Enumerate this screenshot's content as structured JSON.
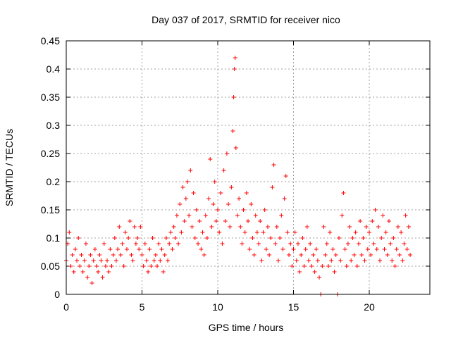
{
  "chart_data": {
    "type": "scatter",
    "title": "Day 037 of 2017, SRMTID for receiver nico",
    "xlabel": "GPS time / hours",
    "ylabel": "SRMTID / TECUs",
    "xlim": [
      0,
      24
    ],
    "ylim": [
      0,
      0.45
    ],
    "x_ticks": [
      0,
      5,
      10,
      15,
      20
    ],
    "y_ticks": [
      0,
      0.05,
      0.1,
      0.15,
      0.2,
      0.25,
      0.3,
      0.35,
      0.4,
      0.45
    ],
    "grid": true,
    "marker": "+",
    "series": [
      {
        "name": "SRMTID",
        "color": "#ff0000",
        "points": [
          [
            0.0,
            0.06
          ],
          [
            0.1,
            0.09
          ],
          [
            0.2,
            0.11
          ],
          [
            0.3,
            0.05
          ],
          [
            0.4,
            0.07
          ],
          [
            0.5,
            0.04
          ],
          [
            0.6,
            0.08
          ],
          [
            0.7,
            0.06
          ],
          [
            0.8,
            0.1
          ],
          [
            0.9,
            0.05
          ],
          [
            1.0,
            0.07
          ],
          [
            1.1,
            0.04
          ],
          [
            1.2,
            0.06
          ],
          [
            1.3,
            0.09
          ],
          [
            1.4,
            0.03
          ],
          [
            1.5,
            0.05
          ],
          [
            1.6,
            0.07
          ],
          [
            1.7,
            0.02
          ],
          [
            1.8,
            0.06
          ],
          [
            1.9,
            0.08
          ],
          [
            2.0,
            0.05
          ],
          [
            2.1,
            0.04
          ],
          [
            2.2,
            0.07
          ],
          [
            2.3,
            0.06
          ],
          [
            2.4,
            0.03
          ],
          [
            2.5,
            0.09
          ],
          [
            2.6,
            0.05
          ],
          [
            2.7,
            0.06
          ],
          [
            2.8,
            0.04
          ],
          [
            2.9,
            0.08
          ],
          [
            3.0,
            0.05
          ],
          [
            3.1,
            0.07
          ],
          [
            3.2,
            0.1
          ],
          [
            3.3,
            0.06
          ],
          [
            3.4,
            0.08
          ],
          [
            3.5,
            0.12
          ],
          [
            3.6,
            0.07
          ],
          [
            3.7,
            0.09
          ],
          [
            3.8,
            0.05
          ],
          [
            3.9,
            0.11
          ],
          [
            4.0,
            0.08
          ],
          [
            4.1,
            0.1
          ],
          [
            4.2,
            0.13
          ],
          [
            4.3,
            0.07
          ],
          [
            4.4,
            0.06
          ],
          [
            4.5,
            0.12
          ],
          [
            4.6,
            0.09
          ],
          [
            4.7,
            0.1
          ],
          [
            4.8,
            0.08
          ],
          [
            4.9,
            0.12
          ],
          [
            5.0,
            0.07
          ],
          [
            5.1,
            0.05
          ],
          [
            5.2,
            0.09
          ],
          [
            5.3,
            0.06
          ],
          [
            5.4,
            0.04
          ],
          [
            5.5,
            0.08
          ],
          [
            5.6,
            0.05
          ],
          [
            5.7,
            0.1
          ],
          [
            5.8,
            0.06
          ],
          [
            5.9,
            0.07
          ],
          [
            6.0,
            0.05
          ],
          [
            6.1,
            0.09
          ],
          [
            6.2,
            0.06
          ],
          [
            6.3,
            0.08
          ],
          [
            6.4,
            0.04
          ],
          [
            6.5,
            0.07
          ],
          [
            6.6,
            0.1
          ],
          [
            6.7,
            0.06
          ],
          [
            6.8,
            0.09
          ],
          [
            6.9,
            0.11
          ],
          [
            7.0,
            0.08
          ],
          [
            7.1,
            0.12
          ],
          [
            7.2,
            0.1
          ],
          [
            7.3,
            0.14
          ],
          [
            7.4,
            0.09
          ],
          [
            7.5,
            0.16
          ],
          [
            7.6,
            0.11
          ],
          [
            7.7,
            0.19
          ],
          [
            7.8,
            0.13
          ],
          [
            7.9,
            0.17
          ],
          [
            8.0,
            0.2
          ],
          [
            8.1,
            0.14
          ],
          [
            8.2,
            0.22
          ],
          [
            8.3,
            0.12
          ],
          [
            8.4,
            0.18
          ],
          [
            8.5,
            0.1
          ],
          [
            8.6,
            0.15
          ],
          [
            8.7,
            0.09
          ],
          [
            8.8,
            0.13
          ],
          [
            8.9,
            0.08
          ],
          [
            9.0,
            0.11
          ],
          [
            9.1,
            0.07
          ],
          [
            9.2,
            0.14
          ],
          [
            9.3,
            0.1
          ],
          [
            9.4,
            0.17
          ],
          [
            9.5,
            0.24
          ],
          [
            9.6,
            0.12
          ],
          [
            9.7,
            0.16
          ],
          [
            9.8,
            0.2
          ],
          [
            9.9,
            0.13
          ],
          [
            10.0,
            0.15
          ],
          [
            10.1,
            0.11
          ],
          [
            10.2,
            0.18
          ],
          [
            10.3,
            0.09
          ],
          [
            10.4,
            0.22
          ],
          [
            10.5,
            0.13
          ],
          [
            10.6,
            0.25
          ],
          [
            10.7,
            0.16
          ],
          [
            10.8,
            0.12
          ],
          [
            10.9,
            0.19
          ],
          [
            11.0,
            0.29
          ],
          [
            11.05,
            0.35
          ],
          [
            11.1,
            0.4
          ],
          [
            11.15,
            0.42
          ],
          [
            11.2,
            0.26
          ],
          [
            11.3,
            0.14
          ],
          [
            11.4,
            0.17
          ],
          [
            11.5,
            0.12
          ],
          [
            11.6,
            0.09
          ],
          [
            11.7,
            0.15
          ],
          [
            11.8,
            0.11
          ],
          [
            11.9,
            0.18
          ],
          [
            12.0,
            0.13
          ],
          [
            12.1,
            0.08
          ],
          [
            12.2,
            0.16
          ],
          [
            12.3,
            0.1
          ],
          [
            12.4,
            0.07
          ],
          [
            12.5,
            0.14
          ],
          [
            12.6,
            0.11
          ],
          [
            12.7,
            0.09
          ],
          [
            12.8,
            0.13
          ],
          [
            12.9,
            0.06
          ],
          [
            13.0,
            0.11
          ],
          [
            13.1,
            0.15
          ],
          [
            13.2,
            0.08
          ],
          [
            13.3,
            0.12
          ],
          [
            13.4,
            0.07
          ],
          [
            13.5,
            0.1
          ],
          [
            13.6,
            0.19
          ],
          [
            13.7,
            0.23
          ],
          [
            13.8,
            0.09
          ],
          [
            13.9,
            0.12
          ],
          [
            14.0,
            0.06
          ],
          [
            14.1,
            0.1
          ],
          [
            14.2,
            0.14
          ],
          [
            14.3,
            0.08
          ],
          [
            14.4,
            0.17
          ],
          [
            14.5,
            0.21
          ],
          [
            14.6,
            0.11
          ],
          [
            14.7,
            0.07
          ],
          [
            14.8,
            0.09
          ],
          [
            14.9,
            0.05
          ],
          [
            15.0,
            0.08
          ],
          [
            15.1,
            0.11
          ],
          [
            15.2,
            0.06
          ],
          [
            15.3,
            0.09
          ],
          [
            15.4,
            0.04
          ],
          [
            15.5,
            0.07
          ],
          [
            15.6,
            0.1
          ],
          [
            15.7,
            0.05
          ],
          [
            15.8,
            0.08
          ],
          [
            15.9,
            0.12
          ],
          [
            16.0,
            0.06
          ],
          [
            16.1,
            0.09
          ],
          [
            16.2,
            0.05
          ],
          [
            16.3,
            0.07
          ],
          [
            16.4,
            0.04
          ],
          [
            16.5,
            0.08
          ],
          [
            16.6,
            0.06
          ],
          [
            16.7,
            0.03
          ],
          [
            16.8,
            0.0
          ],
          [
            16.9,
            0.05
          ],
          [
            17.0,
            0.12
          ],
          [
            17.1,
            0.07
          ],
          [
            17.2,
            0.09
          ],
          [
            17.3,
            0.05
          ],
          [
            17.4,
            0.11
          ],
          [
            17.5,
            0.06
          ],
          [
            17.6,
            0.08
          ],
          [
            17.7,
            0.04
          ],
          [
            17.8,
            0.07
          ],
          [
            17.9,
            0.0
          ],
          [
            18.0,
            0.1
          ],
          [
            18.1,
            0.06
          ],
          [
            18.2,
            0.14
          ],
          [
            18.3,
            0.18
          ],
          [
            18.4,
            0.08
          ],
          [
            18.5,
            0.05
          ],
          [
            18.6,
            0.09
          ],
          [
            18.7,
            0.12
          ],
          [
            18.8,
            0.06
          ],
          [
            18.9,
            0.1
          ],
          [
            19.0,
            0.07
          ],
          [
            19.1,
            0.11
          ],
          [
            19.2,
            0.05
          ],
          [
            19.3,
            0.09
          ],
          [
            19.4,
            0.13
          ],
          [
            19.5,
            0.07
          ],
          [
            19.6,
            0.1
          ],
          [
            19.7,
            0.06
          ],
          [
            19.8,
            0.12
          ],
          [
            19.9,
            0.08
          ],
          [
            20.0,
            0.11
          ],
          [
            20.1,
            0.07
          ],
          [
            20.2,
            0.13
          ],
          [
            20.3,
            0.09
          ],
          [
            20.4,
            0.15
          ],
          [
            20.5,
            0.08
          ],
          [
            20.6,
            0.12
          ],
          [
            20.7,
            0.06
          ],
          [
            20.8,
            0.1
          ],
          [
            20.9,
            0.14
          ],
          [
            21.0,
            0.08
          ],
          [
            21.1,
            0.11
          ],
          [
            21.2,
            0.07
          ],
          [
            21.3,
            0.13
          ],
          [
            21.4,
            0.09
          ],
          [
            21.5,
            0.06
          ],
          [
            21.6,
            0.1
          ],
          [
            21.7,
            0.05
          ],
          [
            21.8,
            0.08
          ],
          [
            21.9,
            0.12
          ],
          [
            22.0,
            0.07
          ],
          [
            22.1,
            0.11
          ],
          [
            22.2,
            0.06
          ],
          [
            22.3,
            0.09
          ],
          [
            22.4,
            0.14
          ],
          [
            22.5,
            0.08
          ],
          [
            22.6,
            0.12
          ],
          [
            22.7,
            0.07
          ]
        ]
      }
    ]
  }
}
